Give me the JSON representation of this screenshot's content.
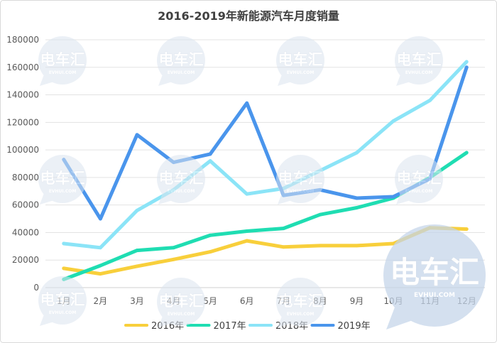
{
  "chart_data": {
    "type": "line",
    "title": "2016-2019年新能源汽车月度销量",
    "xlabel": "",
    "ylabel": "",
    "categories": [
      "1月",
      "2月",
      "3月",
      "4月",
      "5月",
      "6月",
      "7月",
      "8月",
      "9月",
      "10月",
      "11月",
      "12月"
    ],
    "ylim": [
      0,
      180000
    ],
    "y_ticks": [
      0,
      20000,
      40000,
      60000,
      80000,
      100000,
      120000,
      140000,
      160000,
      180000
    ],
    "grid": true,
    "legend_position": "bottom",
    "series": [
      {
        "name": "2016年",
        "color": "#F8CF3B",
        "values": [
          14000,
          10000,
          15500,
          20500,
          26000,
          34000,
          29500,
          30500,
          30500,
          32000,
          43500,
          42500
        ]
      },
      {
        "name": "2017年",
        "color": "#1FDDB2",
        "values": [
          6000,
          16000,
          27000,
          29000,
          38000,
          41000,
          43000,
          53000,
          58000,
          65000,
          80000,
          98000
        ]
      },
      {
        "name": "2018年",
        "color": "#8BE4F7",
        "values": [
          32000,
          29000,
          56000,
          71000,
          92000,
          68000,
          72000,
          85000,
          98000,
          121000,
          136000,
          164000
        ]
      },
      {
        "name": "2019年",
        "color": "#4A95EC",
        "values": [
          93000,
          50000,
          111000,
          91000,
          97000,
          134000,
          67000,
          71000,
          65000,
          66000,
          79000,
          160000
        ]
      }
    ]
  },
  "watermark": {
    "text": "电车汇",
    "subtext": "EVHUI.COM"
  }
}
